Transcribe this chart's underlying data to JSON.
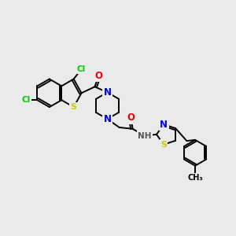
{
  "background_color": "#eaeaea",
  "atom_colors": {
    "C": "#000000",
    "N": "#0000ee",
    "O": "#ee0000",
    "S": "#cccc00",
    "Cl": "#00cc00",
    "H": "#666666"
  },
  "bond_color": "#000000",
  "bond_lw": 1.4
}
